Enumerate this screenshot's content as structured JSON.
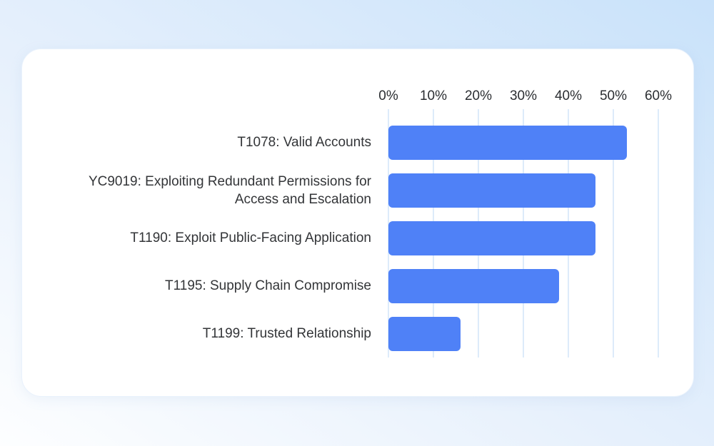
{
  "chart_data": {
    "type": "bar",
    "orientation": "horizontal",
    "title": "",
    "categories": [
      "T1078: Valid Accounts",
      "YC9019: Exploiting Redundant Permissions for Access and Escalation",
      "T1190: Exploit Public-Facing Application",
      "T1195: Supply Chain Compromise",
      "T1199: Trusted Relationship"
    ],
    "values": [
      53,
      46,
      46,
      38,
      16
    ],
    "value_unit": "%",
    "x_tick_labels": [
      "0%",
      "10%",
      "20%",
      "30%",
      "40%",
      "50%",
      "60%"
    ],
    "xlim": [
      0,
      60
    ],
    "grid": "vertical-only",
    "legend": "none",
    "bar_color": "#4f81f7",
    "grid_color": "#ddebfa",
    "label_color": "#333538",
    "tick_color": "#2b2e32",
    "card_background": "#ffffff"
  }
}
